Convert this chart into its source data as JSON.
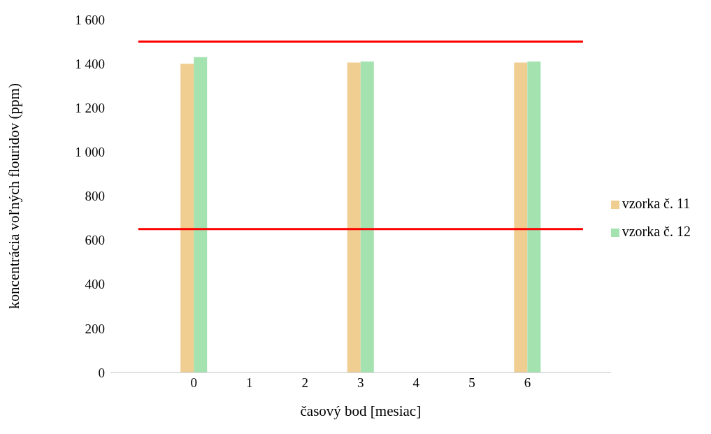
{
  "chart_data": {
    "type": "bar",
    "xlabel": "časový bod [mesiac]",
    "ylabel": "koncentrácia voľných flouridov (ppm)",
    "categories": [
      null,
      "0",
      "1",
      "2",
      "3",
      "4",
      "5",
      "6",
      null
    ],
    "series": [
      {
        "name": "vzorka č. 11",
        "color": "#f0cd90",
        "values": [
          null,
          1400,
          null,
          null,
          1405,
          null,
          null,
          1405,
          null
        ]
      },
      {
        "name": "vzorka č. 12",
        "color": "#a4e2b0",
        "values": [
          null,
          1430,
          null,
          null,
          1410,
          null,
          null,
          1410,
          null
        ]
      },
      {
        "type": "line",
        "color": "#ff0000",
        "values": [
          1500,
          1500,
          1500,
          1500,
          1500,
          1500,
          1500,
          1500,
          1500
        ]
      },
      {
        "type": "line",
        "color": "#ff0000",
        "values": [
          650,
          650,
          650,
          650,
          650,
          650,
          650,
          650,
          650
        ]
      }
    ],
    "ylim": [
      0,
      1600
    ],
    "yticks": [
      0,
      200,
      400,
      600,
      800,
      {
        "value": 1000,
        "label": "1 000"
      },
      {
        "value": 1200,
        "label": "1 200"
      },
      {
        "value": 1400,
        "label": "1 400"
      },
      {
        "value": 1600,
        "label": "1 600"
      }
    ],
    "grid": false,
    "legend": "right"
  }
}
